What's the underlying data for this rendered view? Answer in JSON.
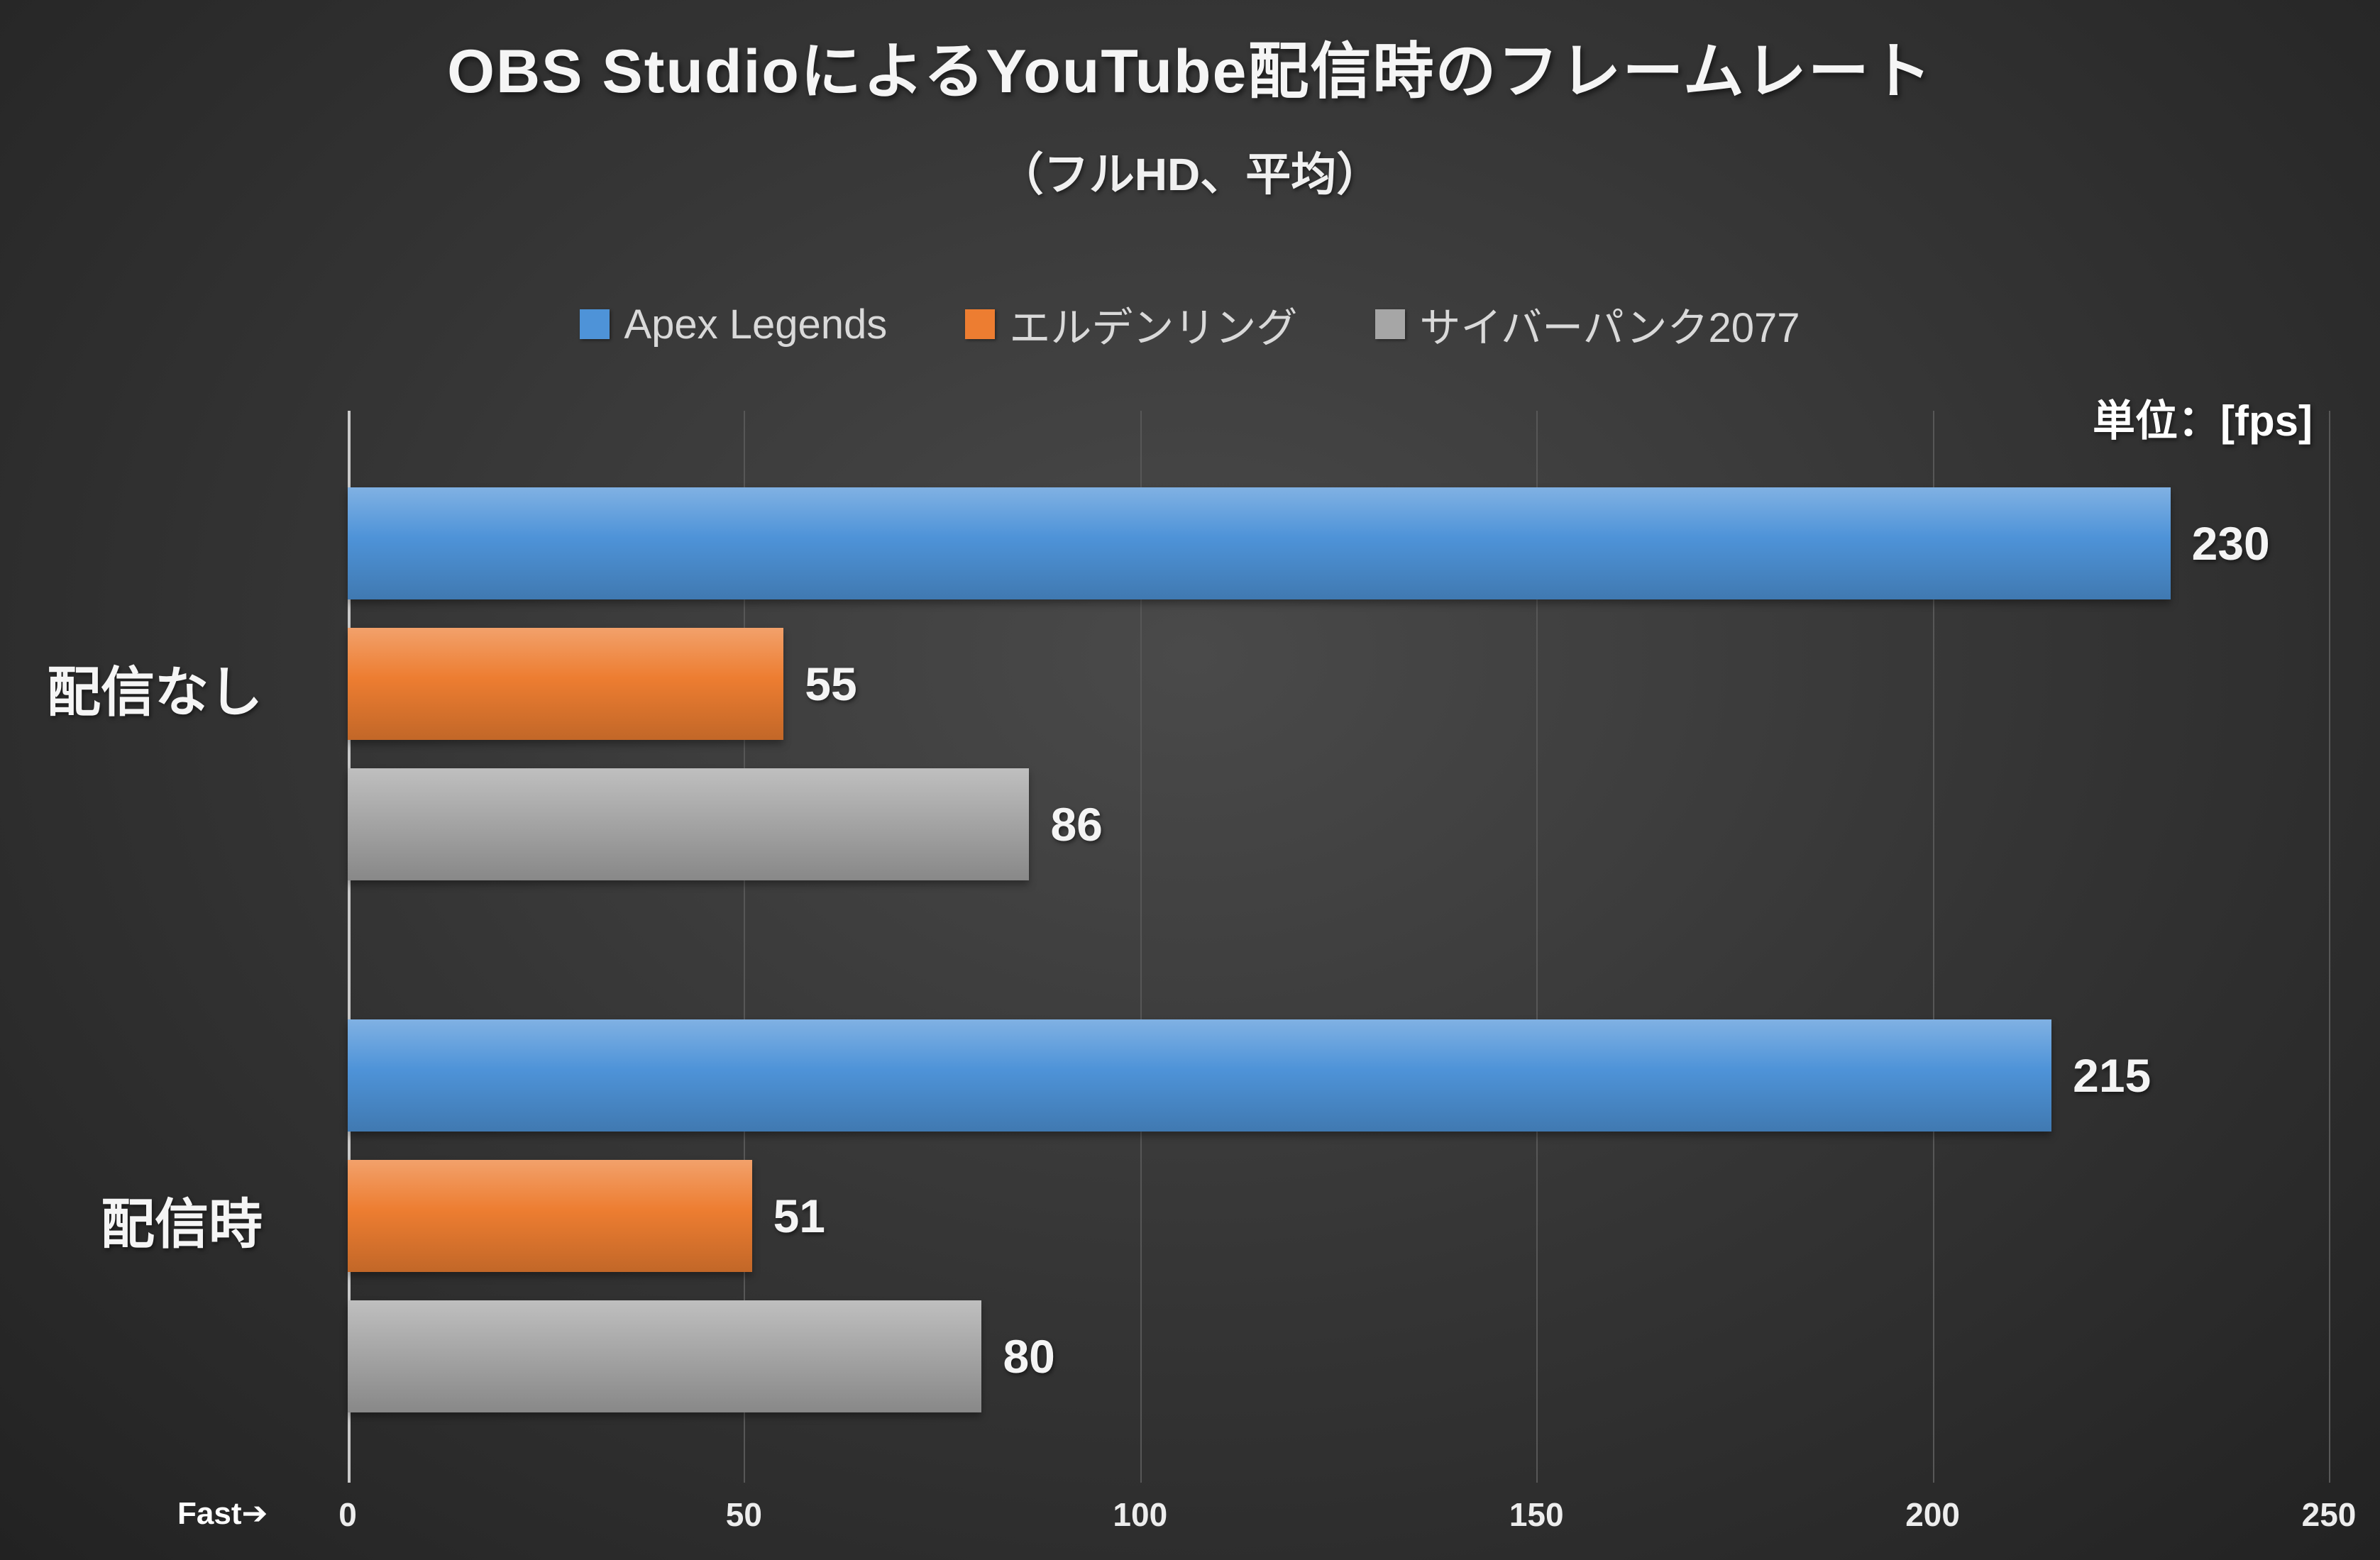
{
  "title": "OBS StudioによるYouTube配信時のフレームレート",
  "subtitle": "（フルHD、平均）",
  "unit_label": "単位：[fps]",
  "fast_label": "Fast➔",
  "chart_data": {
    "type": "bar",
    "orientation": "horizontal",
    "title": "OBS StudioによるYouTube配信時のフレームレート（フルHD、平均）",
    "unit": "fps",
    "categories": [
      "配信なし",
      "配信時"
    ],
    "series": [
      {
        "name": "Apex Legends",
        "color": "#4e93d8",
        "values": [
          230,
          215
        ]
      },
      {
        "name": "エルデンリング",
        "color": "#ed7d31",
        "values": [
          55,
          51
        ]
      },
      {
        "name": "サイバーパンク2077",
        "color": "#a6a6a6",
        "values": [
          86,
          80
        ]
      }
    ],
    "xlim": [
      0,
      250
    ],
    "xticks": [
      0,
      50,
      100,
      150,
      200,
      250
    ],
    "grid": true,
    "legend_position": "top"
  }
}
